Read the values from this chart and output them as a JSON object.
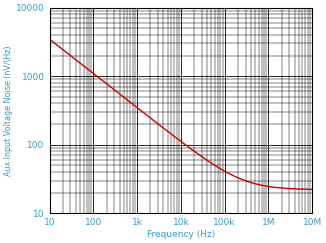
{
  "title": "",
  "xlabel": "Frequency (Hz)",
  "ylabel": "Aux Input Voltage Noise (nV/\\Hz)",
  "xlim": [
    10,
    10000000.0
  ],
  "ylim": [
    10,
    10000
  ],
  "x_ticks": [
    10,
    100,
    1000,
    10000,
    100000,
    1000000,
    10000000
  ],
  "x_tick_labels": [
    "10",
    "100",
    "1k",
    "10k",
    "100k",
    "1M",
    "10M"
  ],
  "y_ticks": [
    10,
    100,
    1000,
    10000
  ],
  "y_tick_labels": [
    "10",
    "100",
    "1000",
    "10000"
  ],
  "line_color": "#cc0000",
  "label_color": "#3399cc",
  "tick_color": "#3399cc",
  "grid_major_color": "#000000",
  "grid_minor_color": "#000000",
  "bg_color": "#ffffff",
  "noise_floor": 22,
  "A_coeff": 119988000,
  "f_calib": 30,
  "v_calib": 2000,
  "line_width": 1.0,
  "font_size": 6.5,
  "ylabel_fontsize": 5.8
}
